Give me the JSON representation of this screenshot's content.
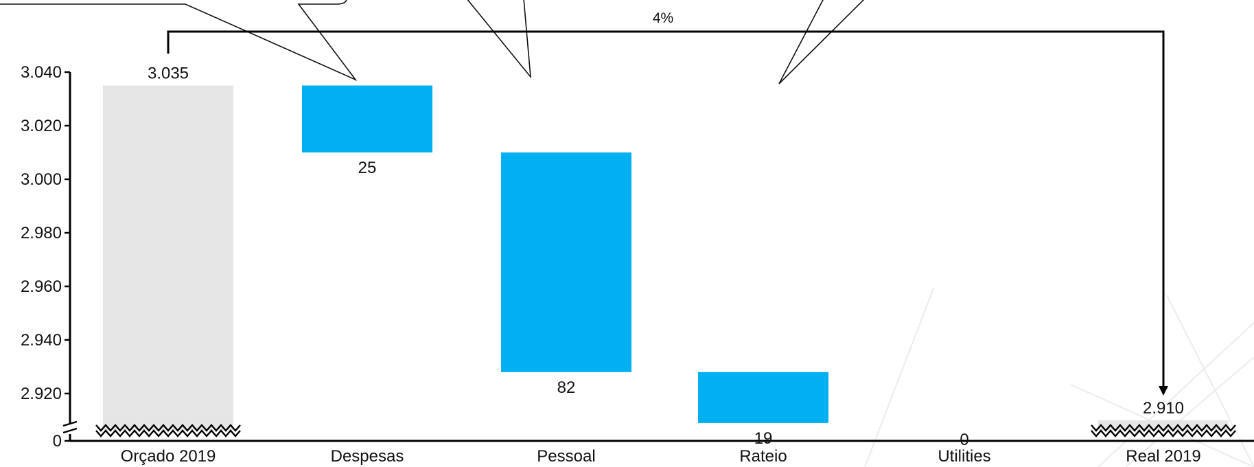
{
  "chart_data": {
    "type": "bar",
    "subtype": "waterfall",
    "categories": [
      "Orçado 2019",
      "Despesas",
      "Pessoal",
      "Rateio",
      "Utilities",
      "Real 2019"
    ],
    "bars": [
      {
        "category": "Orçado 2019",
        "kind": "total",
        "value": 3035,
        "label": "3.035"
      },
      {
        "category": "Despesas",
        "kind": "decrease",
        "value": 25,
        "label": "25"
      },
      {
        "category": "Pessoal",
        "kind": "decrease",
        "value": 82,
        "label": "82"
      },
      {
        "category": "Rateio",
        "kind": "decrease",
        "value": 19,
        "label": "19"
      },
      {
        "category": "Utilities",
        "kind": "decrease",
        "value": 0,
        "label": "0"
      },
      {
        "category": "Real 2019",
        "kind": "total",
        "value": 2910,
        "label": "2.910"
      }
    ],
    "yticks": [
      {
        "value": 3040,
        "label": "3.040"
      },
      {
        "value": 3020,
        "label": "3.020"
      },
      {
        "value": 3000,
        "label": "3.000"
      },
      {
        "value": 2980,
        "label": "2.980"
      },
      {
        "value": 2960,
        "label": "2.960"
      },
      {
        "value": 2940,
        "label": "2.940"
      },
      {
        "value": 2920,
        "label": "2.920"
      }
    ],
    "ybottom_tick": {
      "value": 0,
      "label": "0"
    },
    "ylim": [
      2905,
      3045
    ],
    "axis_break": true,
    "difference_bracket": {
      "from": "Orçado 2019",
      "to": "Real 2019",
      "label": "4%"
    },
    "grid": false,
    "legend": "none",
    "colors": {
      "total": "#e6e6e6",
      "decrease": "#00b0f0",
      "axis": "#000000"
    }
  }
}
